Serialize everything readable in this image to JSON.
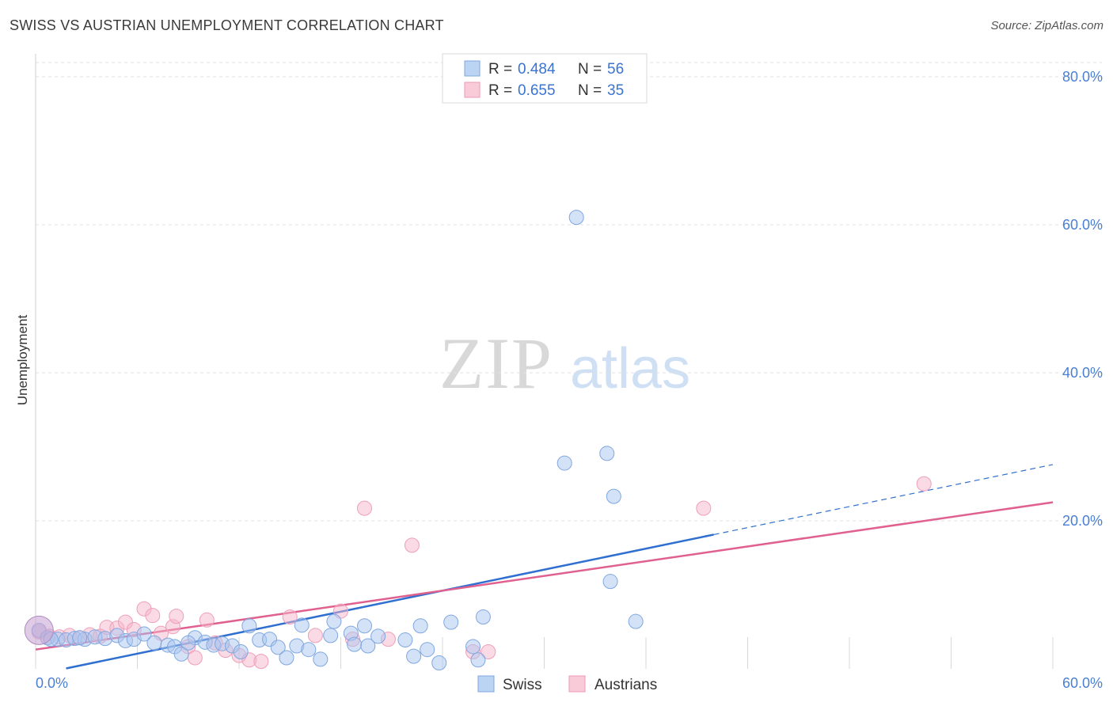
{
  "header": {
    "title": "SWISS VS AUSTRIAN UNEMPLOYMENT CORRELATION CHART",
    "source": "Source: ZipAtlas.com"
  },
  "watermark": {
    "zip": "ZIP",
    "atlas": "atlas"
  },
  "legend_top": [
    {
      "r_label": "R = ",
      "r_value": "0.484",
      "n_label": "N = ",
      "n_value": "56"
    },
    {
      "r_label": "R = ",
      "r_value": "0.655",
      "n_label": "N = ",
      "n_value": "35"
    }
  ],
  "chart_data": {
    "type": "scatter",
    "title": "SWISS VS AUSTRIAN UNEMPLOYMENT CORRELATION CHART",
    "xlabel": "",
    "ylabel": "Unemployment",
    "xlim": [
      0,
      60
    ],
    "ylim": [
      0,
      80
    ],
    "x_tick_labels": [
      "0.0%",
      "60.0%"
    ],
    "y_ticks": [
      20,
      40,
      60,
      80
    ],
    "y_tick_labels": [
      "20.0%",
      "40.0%",
      "60.0%",
      "80.0%"
    ],
    "grid": true,
    "legend_position": "bottom-center",
    "colors": {
      "swiss": "#a9c6ef",
      "swiss_line": "#2f6fd0",
      "austrians": "#f6b6c9",
      "austrians_line": "#e0608f"
    },
    "series": [
      {
        "name": "Swiss",
        "r": 0.484,
        "n": 56,
        "trend": {
          "x0": 0,
          "y0": -0.8,
          "x1": 60,
          "y1": 27.6,
          "solid_until_x": 40
        },
        "points": [
          [
            0.2,
            5.2
          ],
          [
            0.7,
            4.2
          ],
          [
            1.3,
            4.0
          ],
          [
            1.8,
            3.9
          ],
          [
            2.3,
            4.1
          ],
          [
            2.9,
            4.0
          ],
          [
            3.5,
            4.3
          ],
          [
            4.1,
            4.1
          ],
          [
            4.8,
            4.5
          ],
          [
            5.3,
            3.8
          ],
          [
            5.8,
            4.0
          ],
          [
            6.4,
            4.7
          ],
          [
            7.0,
            3.5
          ],
          [
            7.8,
            3.2
          ],
          [
            8.2,
            3.0
          ],
          [
            8.6,
            2.0
          ],
          [
            9.4,
            4.2
          ],
          [
            10.0,
            3.6
          ],
          [
            10.5,
            3.2
          ],
          [
            11.0,
            3.4
          ],
          [
            11.6,
            3.1
          ],
          [
            12.1,
            2.3
          ],
          [
            12.6,
            5.8
          ],
          [
            13.2,
            3.9
          ],
          [
            13.8,
            4.0
          ],
          [
            14.3,
            2.9
          ],
          [
            14.8,
            1.5
          ],
          [
            15.4,
            3.1
          ],
          [
            15.7,
            5.9
          ],
          [
            16.1,
            2.6
          ],
          [
            16.8,
            1.3
          ],
          [
            17.4,
            4.5
          ],
          [
            17.6,
            6.4
          ],
          [
            18.6,
            4.8
          ],
          [
            18.8,
            3.3
          ],
          [
            19.4,
            5.8
          ],
          [
            19.6,
            3.1
          ],
          [
            20.2,
            4.4
          ],
          [
            21.8,
            3.9
          ],
          [
            22.3,
            1.7
          ],
          [
            22.7,
            5.8
          ],
          [
            23.1,
            2.6
          ],
          [
            23.8,
            0.8
          ],
          [
            24.5,
            6.3
          ],
          [
            25.8,
            3.0
          ],
          [
            26.1,
            1.2
          ],
          [
            26.4,
            7.0
          ],
          [
            31.2,
            27.8
          ],
          [
            33.9,
            11.8
          ],
          [
            31.9,
            61.0
          ],
          [
            33.7,
            29.1
          ],
          [
            34.1,
            23.3
          ],
          [
            35.4,
            6.4
          ],
          [
            0.9,
            4.0
          ],
          [
            2.6,
            4.2
          ],
          [
            9.0,
            3.5
          ]
        ]
      },
      {
        "name": "Austrians",
        "r": 0.655,
        "n": 35,
        "trend": {
          "x0": 0,
          "y0": 2.6,
          "x1": 60,
          "y1": 22.5,
          "solid_until_x": 60
        },
        "points": [
          [
            0.2,
            5.0
          ],
          [
            0.8,
            4.4
          ],
          [
            1.4,
            4.3
          ],
          [
            2.0,
            4.5
          ],
          [
            2.6,
            4.2
          ],
          [
            3.2,
            4.6
          ],
          [
            3.8,
            4.4
          ],
          [
            4.2,
            5.6
          ],
          [
            4.8,
            5.5
          ],
          [
            5.3,
            6.3
          ],
          [
            5.8,
            5.3
          ],
          [
            6.4,
            8.1
          ],
          [
            6.9,
            7.2
          ],
          [
            7.4,
            4.8
          ],
          [
            8.1,
            5.7
          ],
          [
            8.3,
            7.1
          ],
          [
            9.0,
            3.0
          ],
          [
            9.4,
            1.5
          ],
          [
            10.1,
            6.6
          ],
          [
            10.6,
            3.5
          ],
          [
            11.2,
            2.5
          ],
          [
            12.0,
            1.8
          ],
          [
            12.6,
            1.2
          ],
          [
            13.3,
            1.0
          ],
          [
            15.0,
            7.0
          ],
          [
            16.5,
            4.5
          ],
          [
            18.0,
            7.8
          ],
          [
            18.7,
            4.0
          ],
          [
            19.4,
            21.7
          ],
          [
            20.8,
            4.0
          ],
          [
            22.2,
            16.7
          ],
          [
            25.8,
            2.3
          ],
          [
            26.7,
            2.3
          ],
          [
            39.4,
            21.7
          ],
          [
            52.4,
            25.0
          ]
        ]
      }
    ]
  },
  "legend_bottom": [
    {
      "label": "Swiss"
    },
    {
      "label": "Austrians"
    }
  ]
}
